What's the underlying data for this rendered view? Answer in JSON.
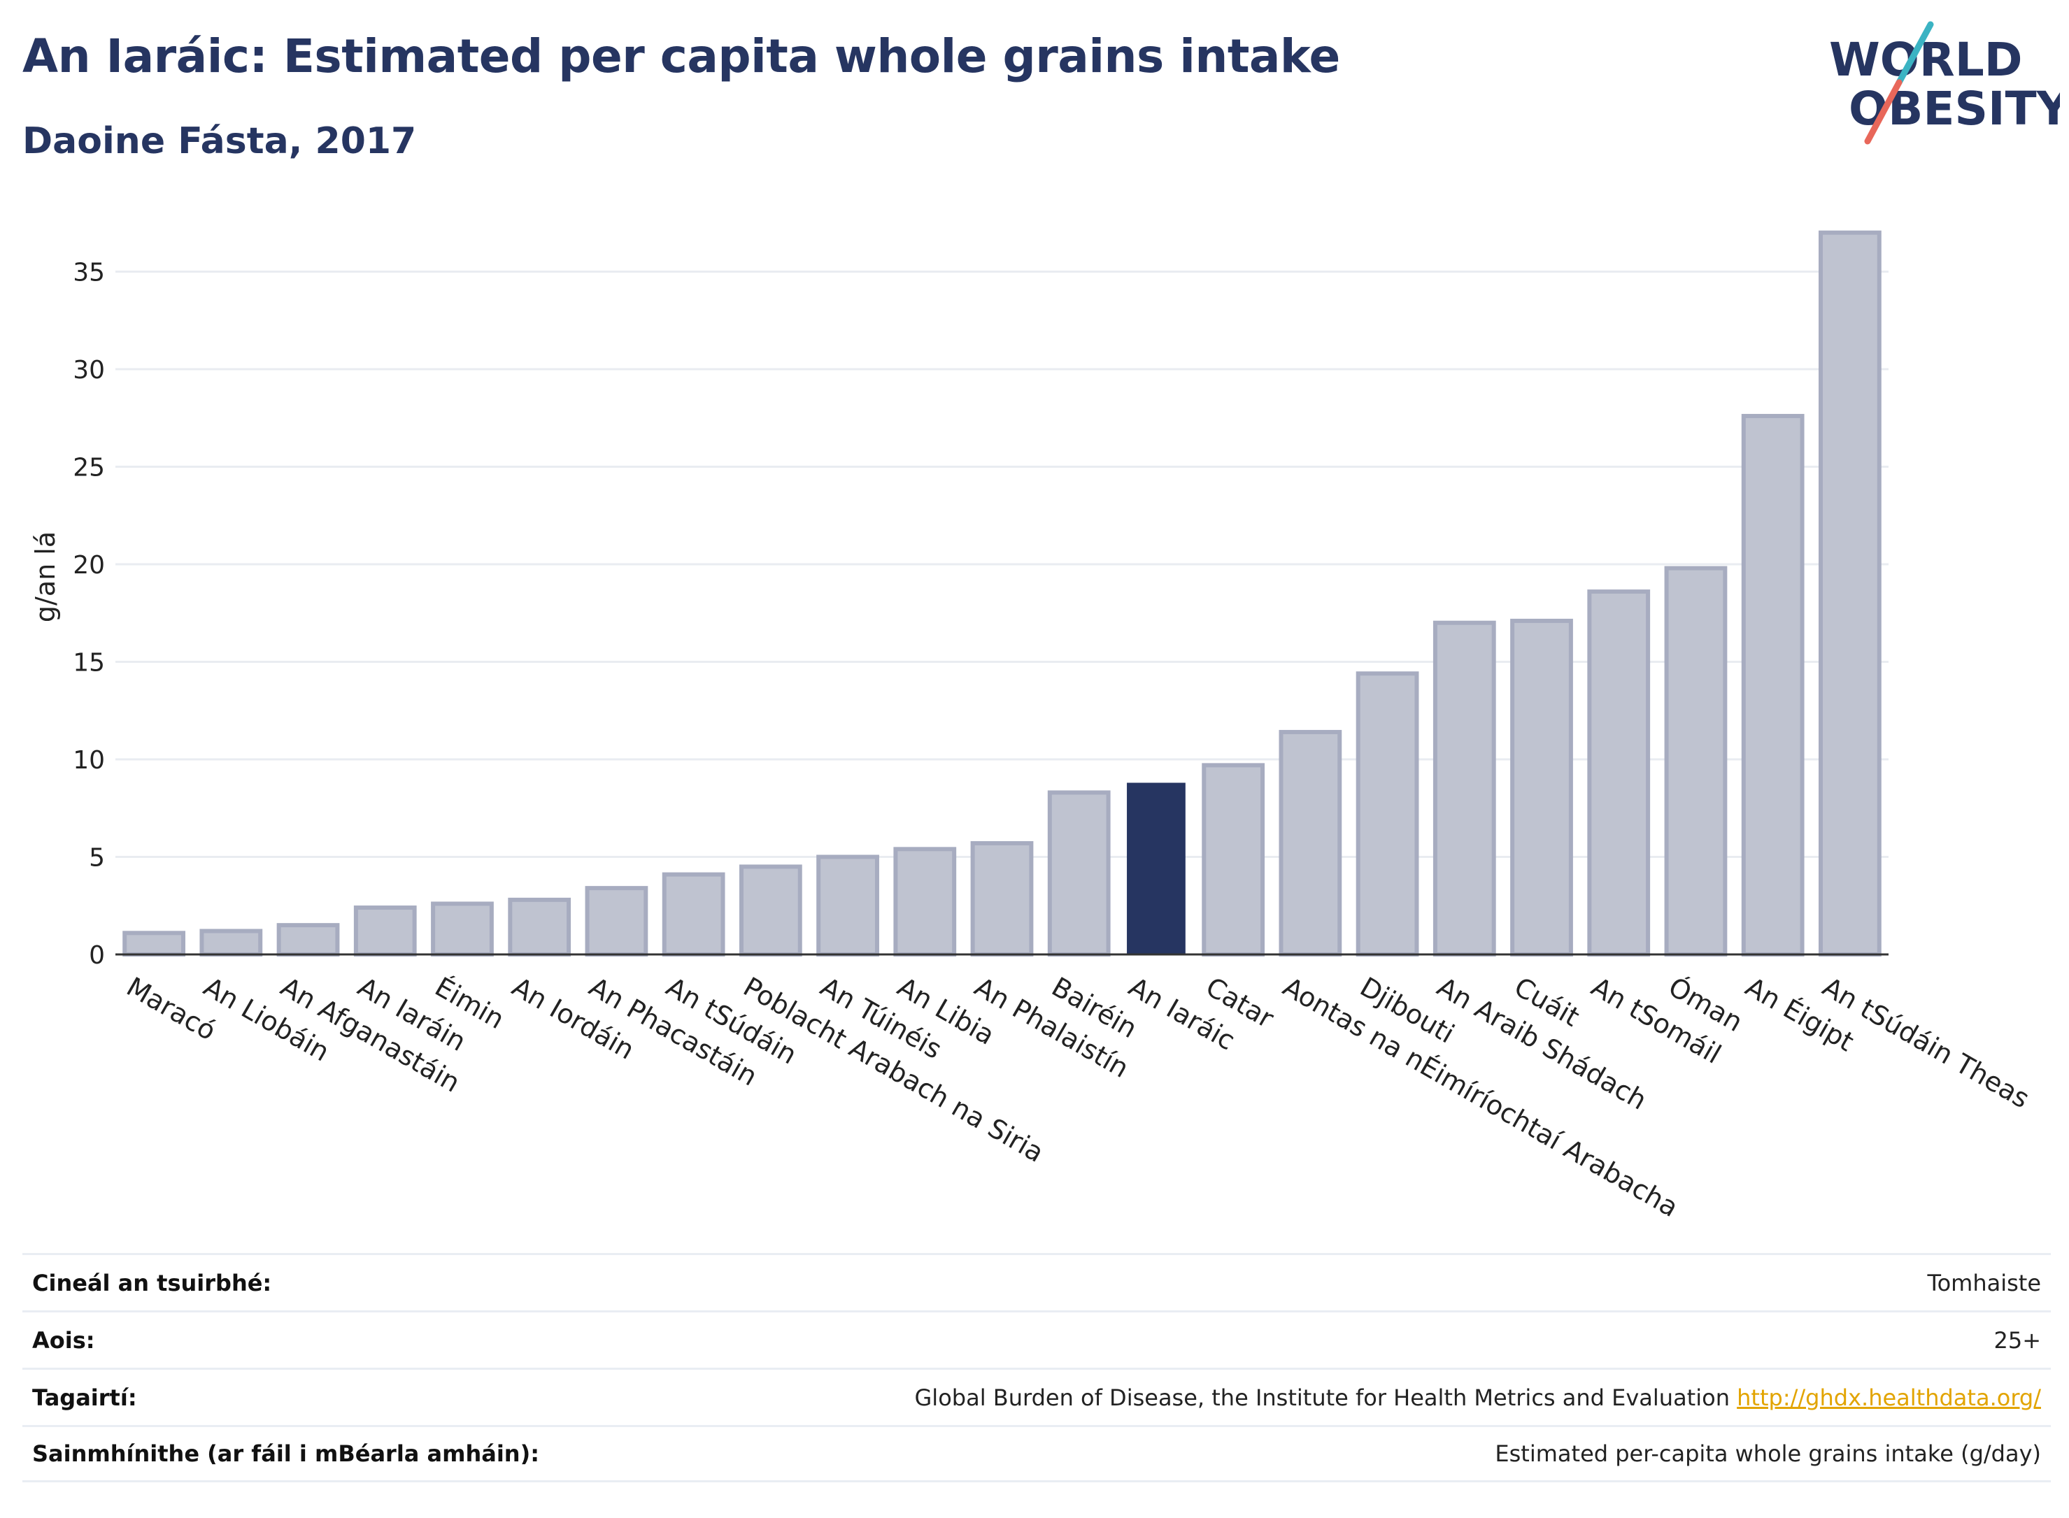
{
  "header": {
    "title": "An Iaráic: Estimated per capita whole grains intake",
    "subtitle": "Daoine Fásta, 2017"
  },
  "logo": {
    "line1": "WORLD",
    "line2": "OBESITY",
    "colors": {
      "text": "#263561",
      "slash_top": "#3bb3c3",
      "slash_bottom": "#e8675a"
    }
  },
  "chart_data": {
    "type": "bar",
    "ylabel": "g/an lá",
    "ylim": [
      0,
      38
    ],
    "yticks": [
      0,
      5,
      10,
      15,
      20,
      25,
      30,
      35
    ],
    "grid": true,
    "categories": [
      "Maracó",
      "An Liobáin",
      "An Afganastáin",
      "An Iaráin",
      "Éimin",
      "An Iordáin",
      "An Phacastáin",
      "An tSúdáin",
      "Poblacht Arabach na Siria",
      "An Túinéis",
      "An Libia",
      "An Phalaistín",
      "Bairéin",
      "An Iaráic",
      "Catar",
      "Aontas na nÉimíríochtaí Arabacha",
      "Djibouti",
      "An Araib Shádach",
      "Cuáit",
      "An tSomáil",
      "Óman",
      "An Éigipt",
      "An tSúdáin Theas"
    ],
    "values": [
      1.1,
      1.2,
      1.5,
      2.4,
      2.6,
      2.8,
      3.4,
      4.1,
      4.5,
      5.0,
      5.4,
      5.7,
      8.3,
      8.8,
      9.7,
      11.4,
      14.4,
      17.0,
      17.1,
      18.6,
      19.8,
      27.6,
      37.0
    ],
    "highlight": "An Iaráic",
    "colors": {
      "bar": "#bfc3d0",
      "bar_stroke": "#a7acc0",
      "highlight": "#263561",
      "grid": "#e9ecf1",
      "axis": "#333333"
    }
  },
  "info": {
    "rows": [
      {
        "label": "Cineál an tsuirbhé:",
        "value": "Tomhaiste"
      },
      {
        "label": "Aois:",
        "value": "25+"
      },
      {
        "label": "Tagairtí:",
        "value": "Global Burden of Disease, the Institute for Health Metrics and Evaluation",
        "link": "http://ghdx.healthdata.org/"
      },
      {
        "label": "Sainmhínithe (ar fáil i mBéarla amháin):",
        "value": "Estimated per-capita whole grains intake (g/day)"
      }
    ]
  }
}
